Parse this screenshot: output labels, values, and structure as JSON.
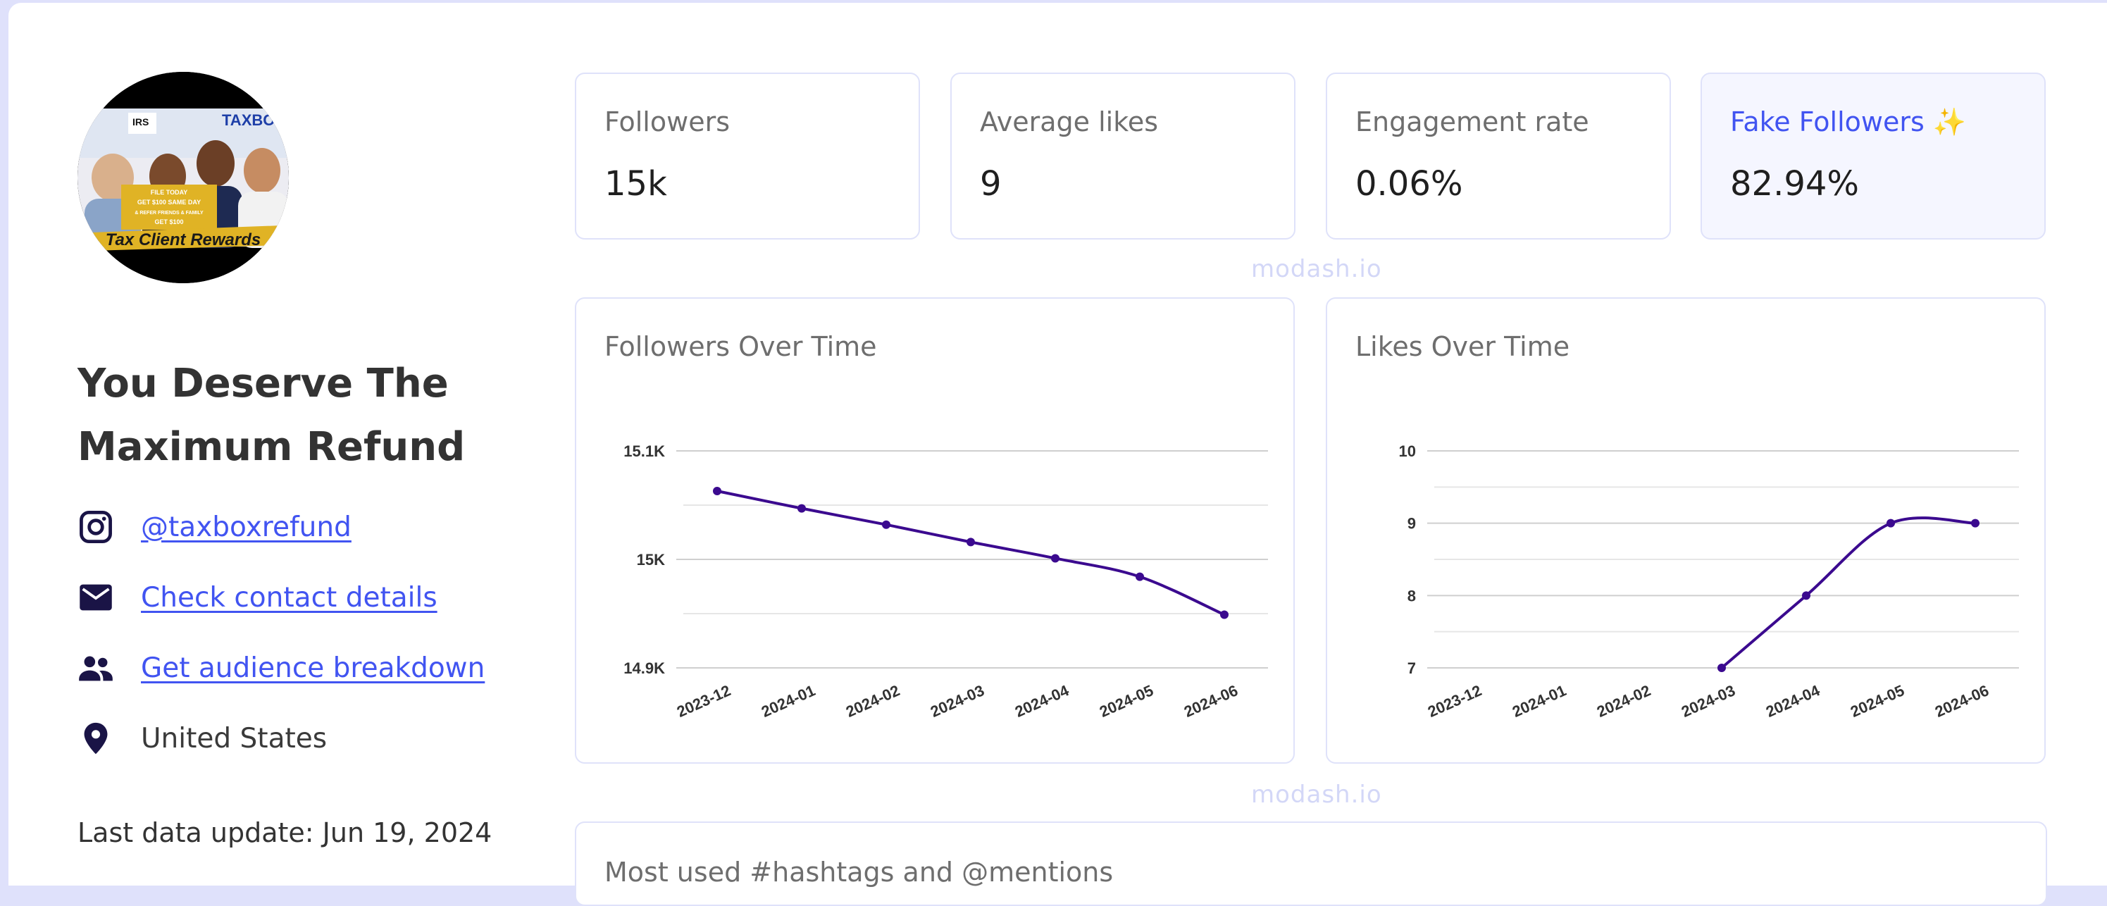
{
  "profile": {
    "avatar_text": {
      "irs": "IRS",
      "brand": "TAXBOX",
      "banner_line1": "FILE TODAY",
      "banner_line2": "GET $100 SAME DAY",
      "banner_line3": "& REFER FRIENDS & FAMILY",
      "banner_line4": "GET $100",
      "ribbon": "Tax Client Rewards"
    },
    "name": "You Deserve The Maximum Refund",
    "handle": "@taxboxrefund",
    "contact_link": "Check contact details",
    "audience_link": "Get audience breakdown",
    "location": "United States",
    "last_update": "Last data update: Jun 19, 2024"
  },
  "stats": [
    {
      "label": "Followers",
      "value": "15k"
    },
    {
      "label": "Average likes",
      "value": "9"
    },
    {
      "label": "Engagement rate",
      "value": "0.06%"
    },
    {
      "label": "Fake Followers ✨",
      "value": "82.94%"
    }
  ],
  "watermark": "modash.io",
  "colors": {
    "accent": "#4154f1",
    "line": "#3b0a8f",
    "border": "#dfe2fa",
    "icon": "#1a1446"
  },
  "icons": {
    "handle": "instagram-icon",
    "contact": "mail-icon",
    "audience": "people-icon",
    "location": "location-pin-icon"
  },
  "chart_data": [
    {
      "type": "line",
      "title": "Followers Over Time",
      "x": [
        "2023-12",
        "2024-01",
        "2024-02",
        "2024-03",
        "2024-04",
        "2024-05",
        "2024-06"
      ],
      "y": [
        15063,
        15047,
        15032,
        15016,
        15001,
        14984,
        14949
      ],
      "ylim": [
        14900,
        15100
      ],
      "yticks": [
        14900,
        15000,
        15100
      ],
      "ytick_labels": [
        "14.9K",
        "15K",
        "15.1K"
      ],
      "grid": true
    },
    {
      "type": "line",
      "title": "Likes Over Time",
      "x": [
        "2023-12",
        "2024-01",
        "2024-02",
        "2024-03",
        "2024-04",
        "2024-05",
        "2024-06"
      ],
      "y": [
        null,
        null,
        null,
        7,
        8,
        9,
        9
      ],
      "ylim": [
        7,
        10
      ],
      "yticks": [
        7,
        8,
        9,
        10
      ],
      "ytick_labels": [
        "7",
        "8",
        "9",
        "10"
      ],
      "grid": true
    }
  ],
  "bottom_section": {
    "title": "Most used #hashtags and @mentions"
  }
}
